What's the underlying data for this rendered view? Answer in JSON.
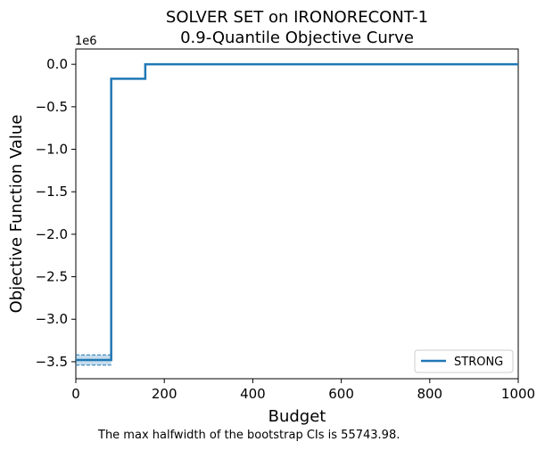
{
  "chart_data": {
    "type": "line",
    "title_line1": "SOLVER SET on IRONORECONT-1",
    "title_line2": "0.9-Quantile Objective Curve",
    "xlabel": "Budget",
    "ylabel": "Objective Function Value",
    "y_offset_label": "1e6",
    "xlim": [
      0,
      1000
    ],
    "ylim": [
      -3700000,
      180000
    ],
    "x_ticks": [
      0,
      200,
      400,
      600,
      800,
      1000
    ],
    "x_tick_labels": [
      "0",
      "200",
      "400",
      "600",
      "800",
      "1000"
    ],
    "y_ticks": [
      0,
      -500000,
      -1000000,
      -1500000,
      -2000000,
      -2500000,
      -3000000,
      -3500000
    ],
    "y_tick_labels": [
      "0.0",
      "−0.5",
      "−1.0",
      "−1.5",
      "−2.0",
      "−2.5",
      "−3.0",
      "−3.5"
    ],
    "legend_position": "lower right",
    "series": [
      {
        "name": "STRONG",
        "color": "#1f77b4",
        "step": true,
        "x": [
          0,
          80,
          80,
          157,
          157,
          1000
        ],
        "y": [
          -3480000,
          -3480000,
          -170000,
          -170000,
          0,
          0
        ],
        "ci": {
          "x": [
            0,
            80
          ],
          "lower": [
            -3540000,
            -3540000
          ],
          "upper": [
            -3420000,
            -3420000
          ]
        }
      }
    ],
    "note": "The max halfwidth of the bootstrap CIs is 55743.98."
  }
}
